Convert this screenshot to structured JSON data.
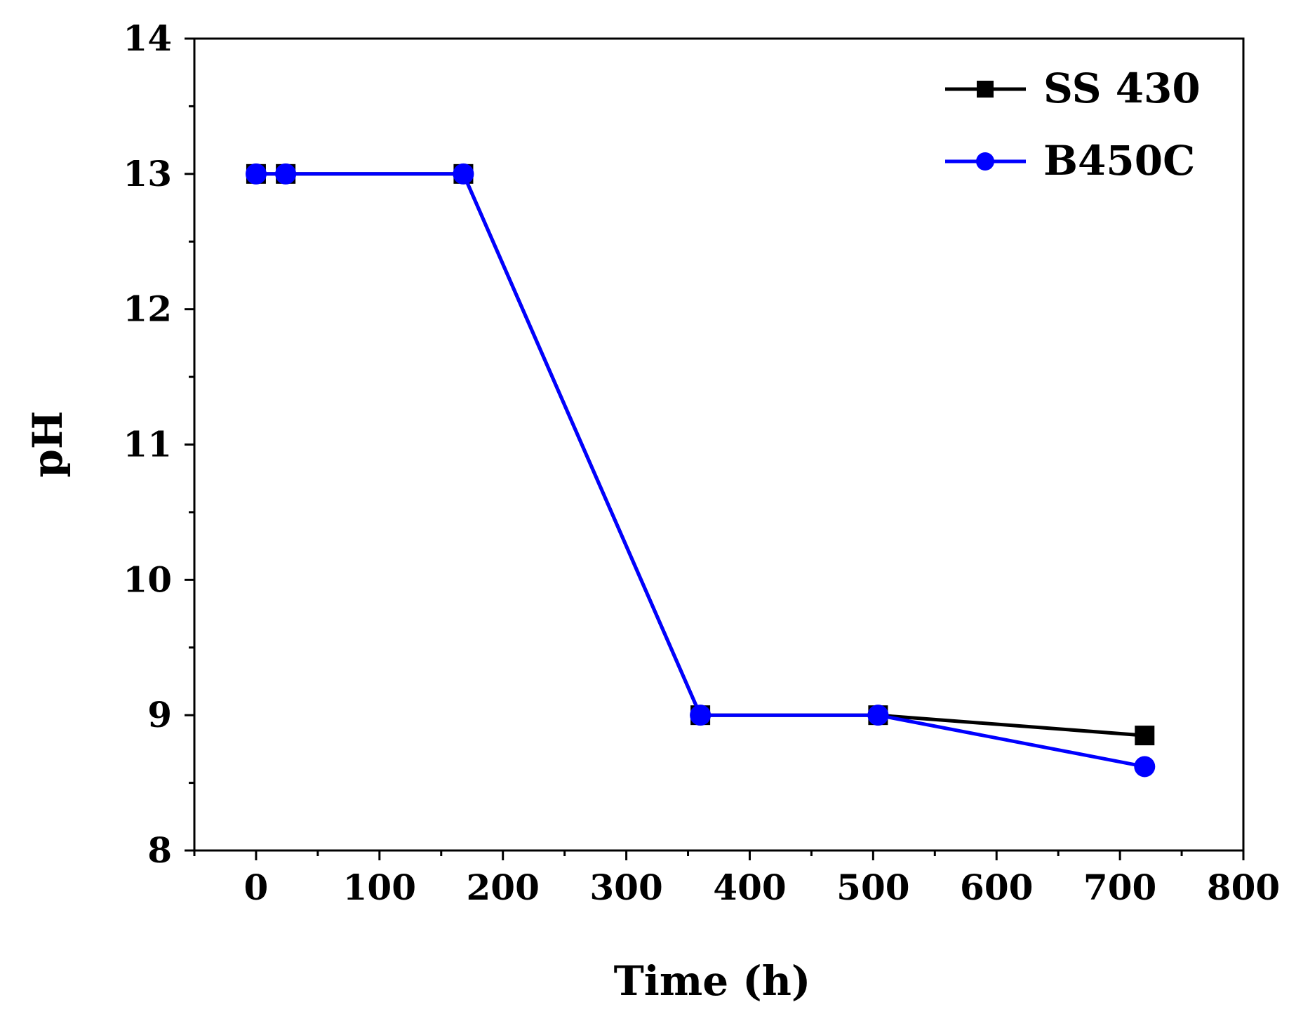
{
  "chart_data": {
    "type": "line",
    "title": "",
    "xlabel": "Time (h)",
    "ylabel": "pH",
    "xlim": [
      -50,
      800
    ],
    "ylim": [
      8,
      14
    ],
    "xticks": [
      0,
      100,
      200,
      300,
      400,
      500,
      600,
      700,
      800
    ],
    "yticks": [
      8,
      9,
      10,
      11,
      12,
      13,
      14
    ],
    "legend_position": "top-right",
    "series": [
      {
        "name": "SS 430",
        "color": "#000000",
        "marker": "square",
        "x": [
          0,
          24,
          168,
          360,
          504,
          720
        ],
        "y": [
          13.0,
          13.0,
          13.0,
          9.0,
          9.0,
          8.85
        ]
      },
      {
        "name": "B450C",
        "color": "#0000ff",
        "marker": "circle",
        "x": [
          0,
          24,
          168,
          360,
          504,
          720
        ],
        "y": [
          13.0,
          13.0,
          13.0,
          9.0,
          9.0,
          8.62
        ]
      }
    ]
  }
}
